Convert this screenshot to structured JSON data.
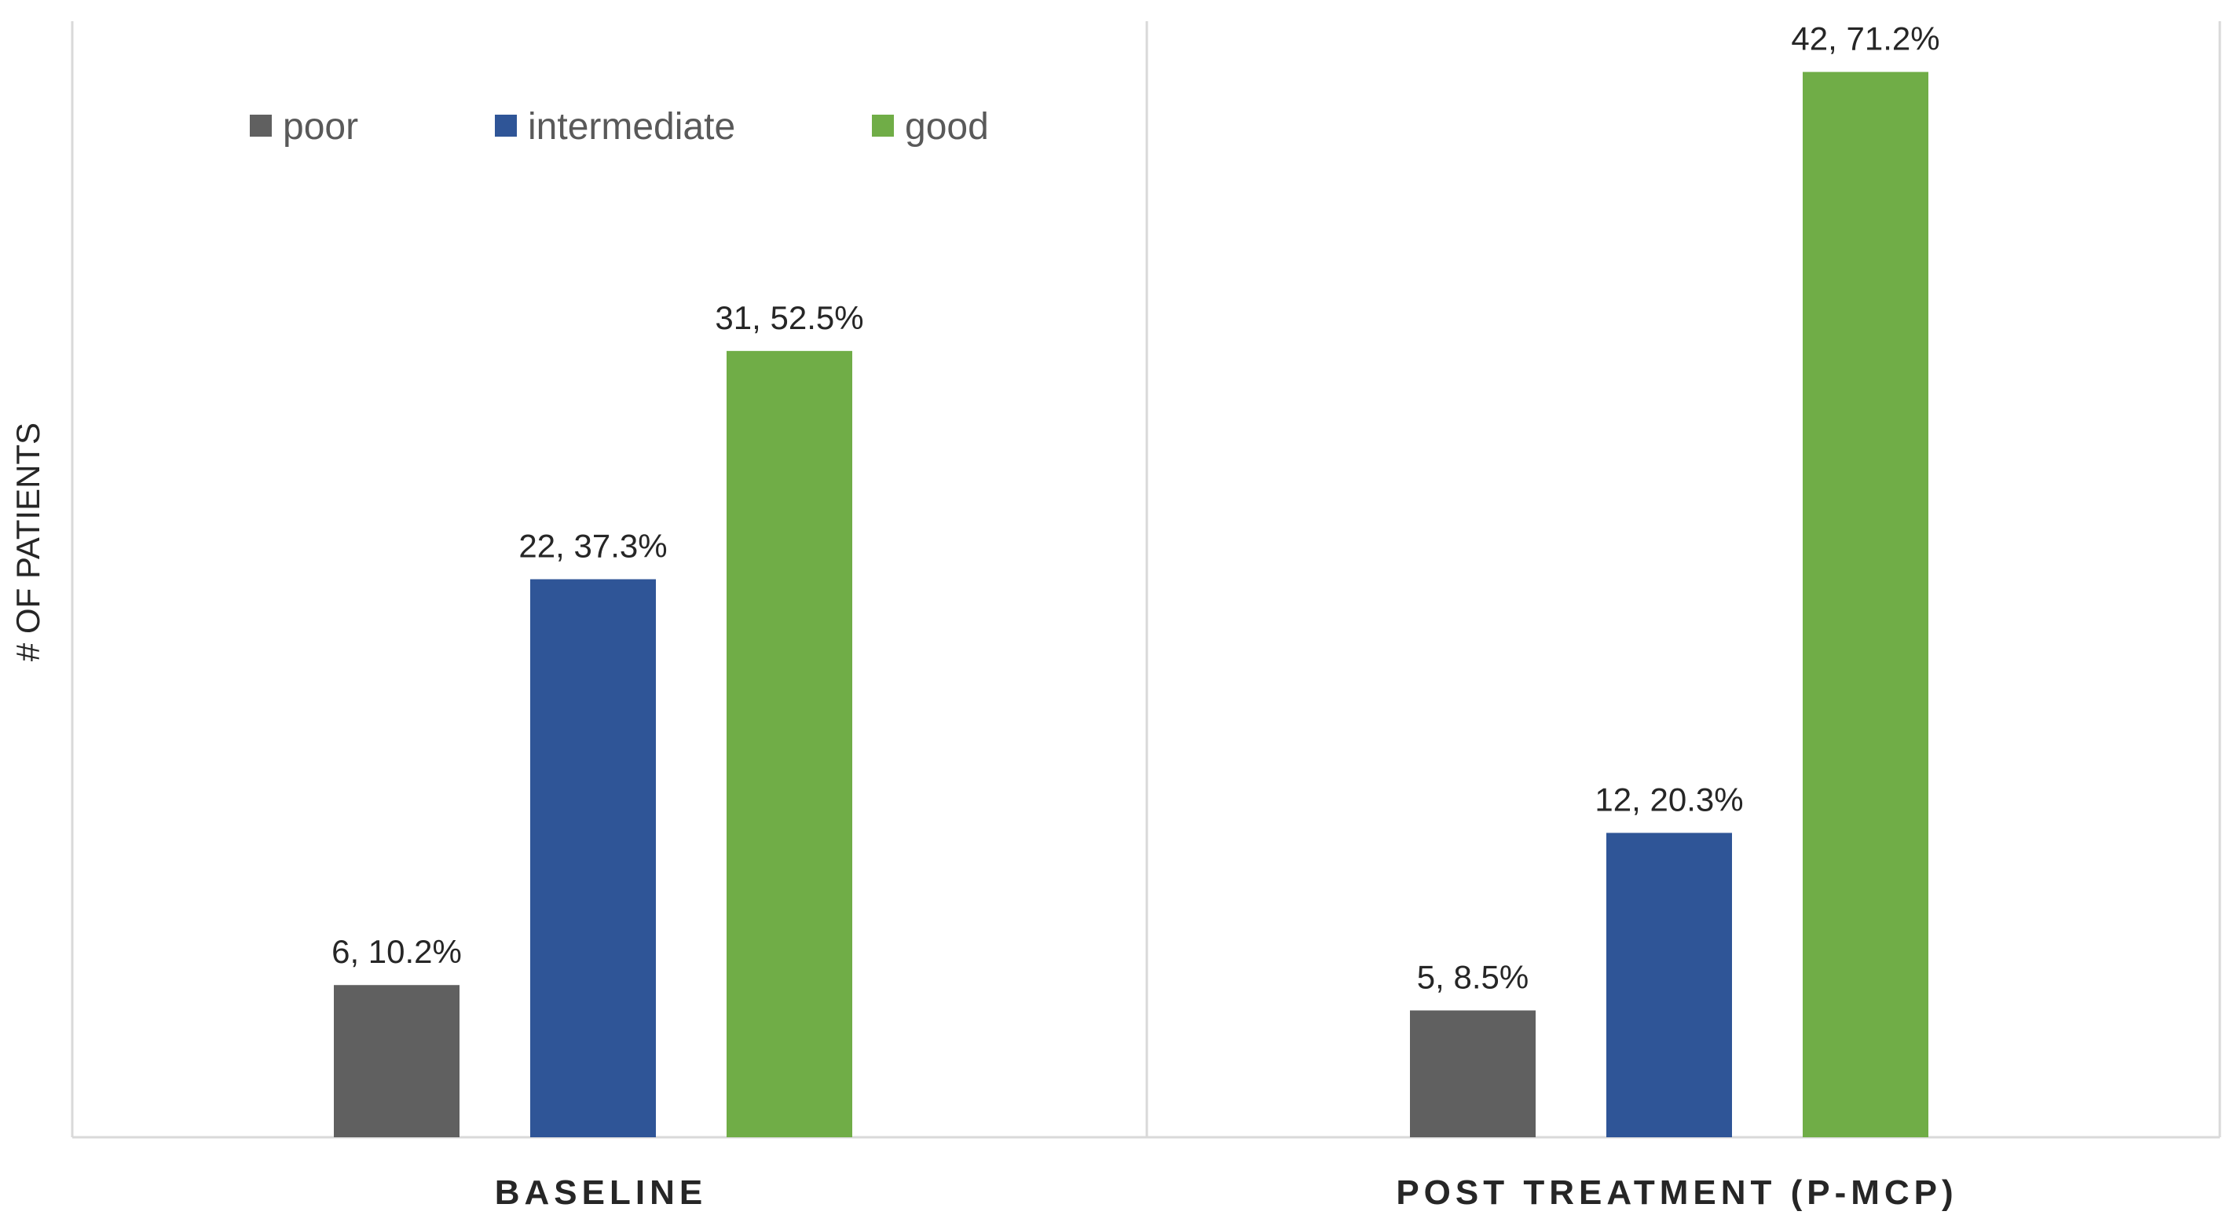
{
  "chart_data": {
    "type": "bar",
    "categories": [
      "BASELINE",
      "POST TREATMENT (P-MCP)"
    ],
    "series": [
      {
        "name": "poor",
        "color": "#606060",
        "values": [
          6,
          5
        ],
        "labels": [
          "6, 10.2%",
          "5, 8.5%"
        ]
      },
      {
        "name": "intermediate",
        "color": "#2f5597",
        "values": [
          22,
          12
        ],
        "labels": [
          "22, 37.3%",
          "12, 20.3%"
        ]
      },
      {
        "name": "good",
        "color": "#70ad47",
        "values": [
          31,
          42
        ],
        "labels": [
          "31, 52.5%",
          "42, 71.2%"
        ]
      }
    ],
    "ylabel": "# OF PATIENTS",
    "xlabel": "",
    "ylim": [
      0,
      44
    ],
    "grid": false,
    "legend_position": "top-left"
  }
}
